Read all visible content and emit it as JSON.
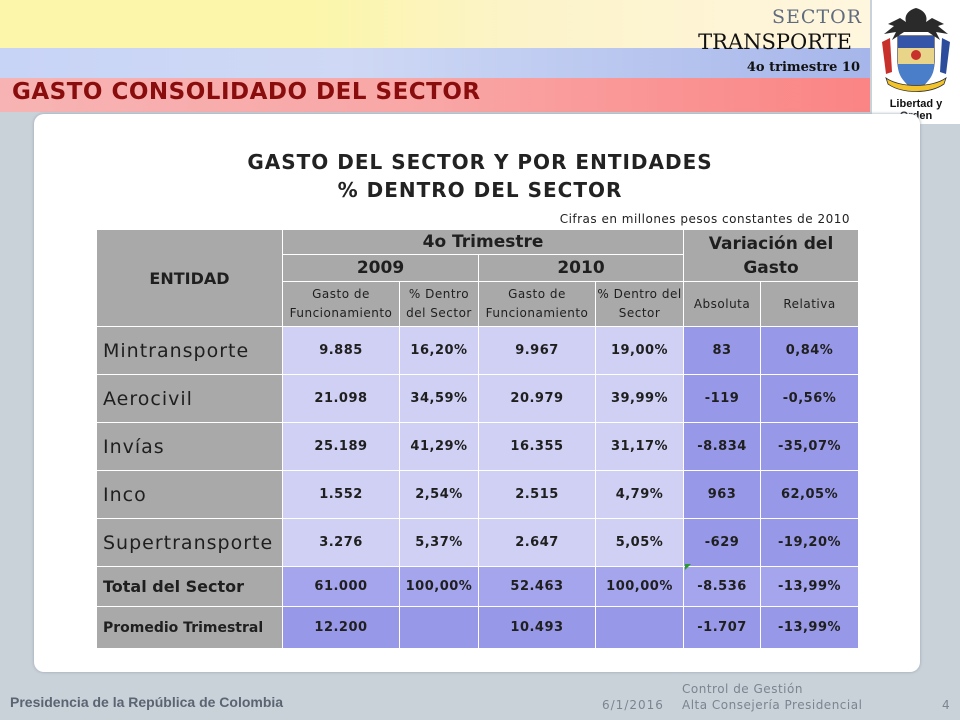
{
  "header": {
    "sector": "SECTOR",
    "transporte": "TRANSPORTE",
    "trimestre": "4o trimestre 10",
    "title": "GASTO CONSOLIDADO DEL SECTOR",
    "emblem_motto": "Libertad y Orden"
  },
  "table": {
    "title_line1": "GASTO DEL SECTOR Y POR ENTIDADES",
    "title_line2": "% DENTRO DEL SECTOR",
    "note": "Cifras en millones pesos constantes de 2010",
    "col_entidad": "ENTIDAD",
    "col_trimestre": "4o Trimestre",
    "col_variacion": "Variación del Gasto",
    "col_2009": "2009",
    "col_2010": "2010",
    "col_gasto_func_2009": "Gasto de Funcionamiento",
    "col_pct_2009": "% Dentro del Sector",
    "col_gasto_func_2010": "Gasto de Funcionamiento",
    "col_pct_2010": "% Dentro del Sector",
    "col_absoluta": "Absoluta",
    "col_relativa": "Relativa",
    "rows": [
      {
        "entidad": "Mintransporte",
        "g2009": "9.885",
        "p2009": "16,20%",
        "g2010": "9.967",
        "p2010": "19,00%",
        "abs": "83",
        "rel": "0,84%"
      },
      {
        "entidad": "Aerocivil",
        "g2009": "21.098",
        "p2009": "34,59%",
        "g2010": "20.979",
        "p2010": "39,99%",
        "abs": "-119",
        "rel": "-0,56%"
      },
      {
        "entidad": "Invías",
        "g2009": "25.189",
        "p2009": "41,29%",
        "g2010": "16.355",
        "p2010": "31,17%",
        "abs": "-8.834",
        "rel": "-35,07%"
      },
      {
        "entidad": "Inco",
        "g2009": "1.552",
        "p2009": "2,54%",
        "g2010": "2.515",
        "p2010": "4,79%",
        "abs": "963",
        "rel": "62,05%"
      },
      {
        "entidad": "Supertransporte",
        "g2009": "3.276",
        "p2009": "5,37%",
        "g2010": "2.647",
        "p2010": "5,05%",
        "abs": "-629",
        "rel": "-19,20%"
      }
    ],
    "total": {
      "entidad": "Total del Sector",
      "g2009": "61.000",
      "p2009": "100,00%",
      "g2010": "52.463",
      "p2010": "100,00%",
      "abs": "-8.536",
      "rel": "-13,99%"
    },
    "promedio": {
      "entidad": "Promedio Trimestral",
      "g2009": "12.200",
      "p2009": "",
      "g2010": "10.493",
      "p2010": "",
      "abs": "-1.707",
      "rel": "-13,99%"
    }
  },
  "footer": {
    "left": "Presidencia de la República de Colombia",
    "date": "6/1/2016",
    "control1": "Control de Gestión",
    "control2": "Alta Consejería Presidencial",
    "page": "4"
  }
}
